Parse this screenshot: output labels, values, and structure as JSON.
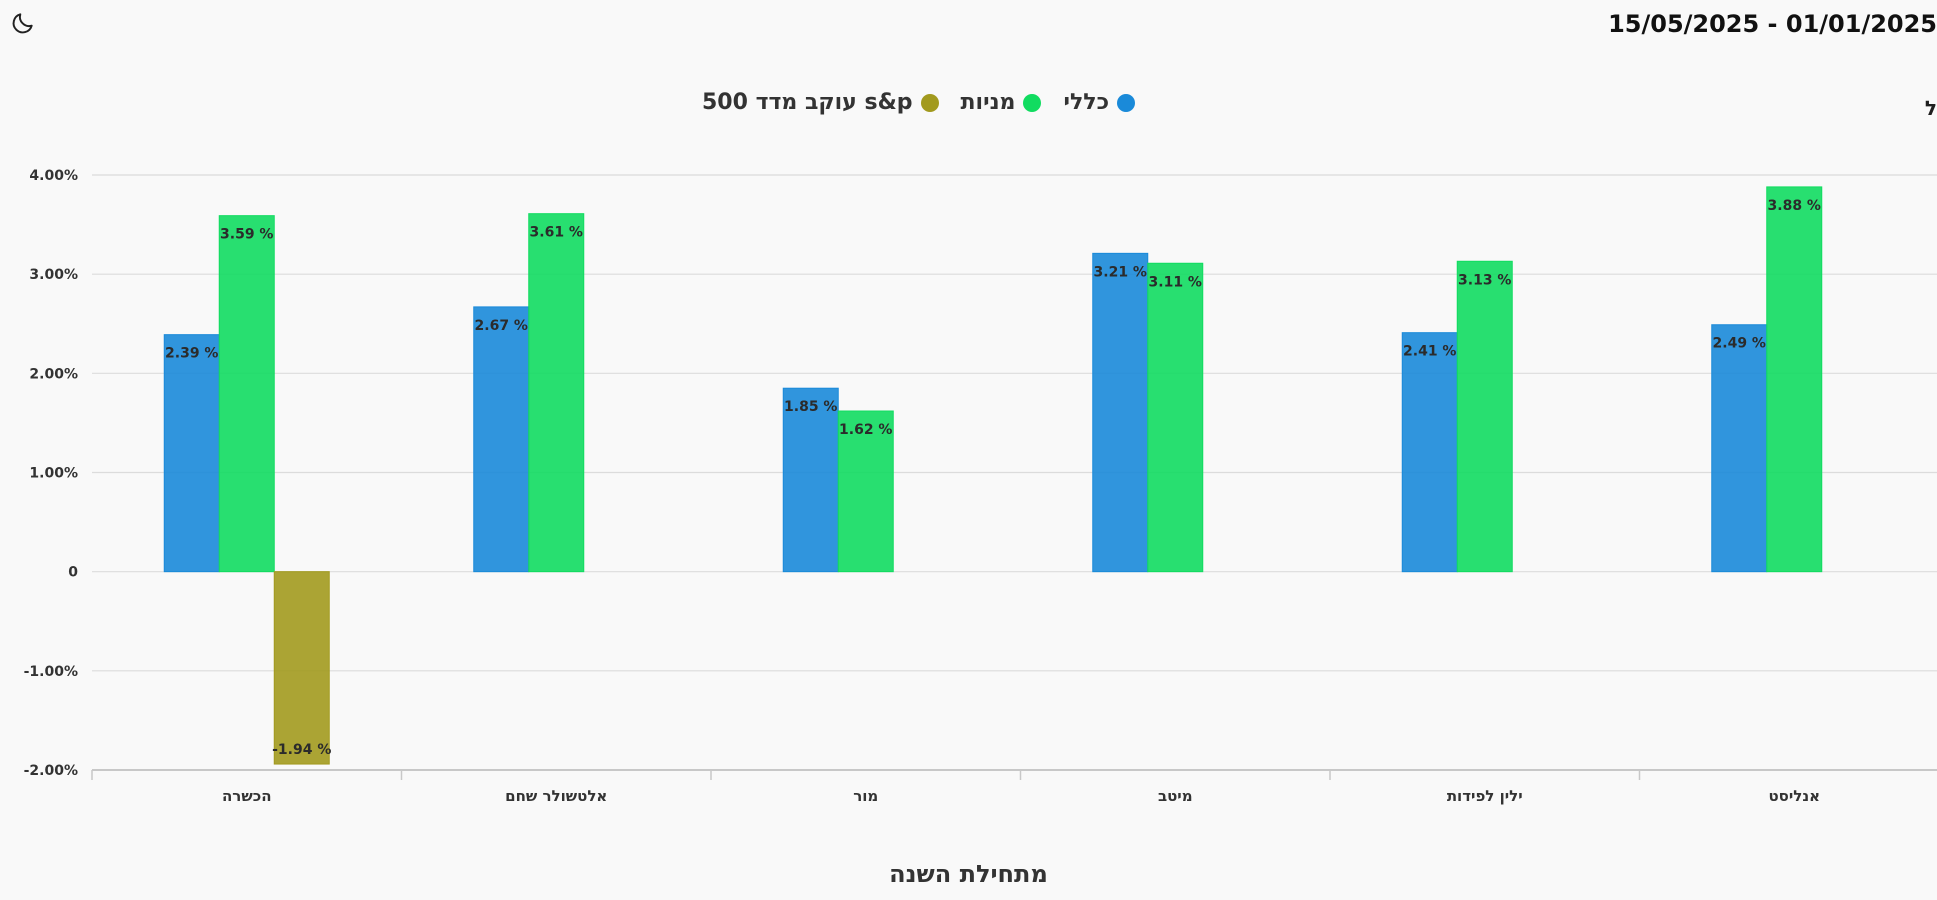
{
  "header": {
    "date_range": "15/05/2025 - 01/01/2025",
    "edge_glyph": "ל",
    "theme_icon": "moon-icon"
  },
  "colors": {
    "series1": "#1a8ad9",
    "series2": "#11dc60",
    "series3": "#a29a1e",
    "grid": "#dcdcdc",
    "axis": "#c8c8c8",
    "label": "#333333"
  },
  "chart_data": {
    "type": "bar",
    "title": "",
    "xlabel": "מתחילת השנה",
    "ylabel": "",
    "ylim": [
      -2,
      4
    ],
    "yticks": [
      4,
      3,
      2,
      1,
      0,
      -1,
      -2
    ],
    "ytick_labels": [
      "4.00%",
      "3.00%",
      "2.00%",
      "1.00%",
      "0",
      "-1.00%",
      "-2.00%"
    ],
    "legend_position": "top-center",
    "grid": true,
    "categories": [
      "הכשרה",
      "אלטשולר שחם",
      "מור",
      "מיטב",
      "ילין לפידות",
      "אנליסט"
    ],
    "series": [
      {
        "name": "כללי",
        "values": [
          2.39,
          2.67,
          1.85,
          3.21,
          2.41,
          2.49
        ]
      },
      {
        "name": "מניות",
        "values": [
          3.59,
          3.61,
          1.62,
          3.11,
          3.13,
          3.88
        ]
      },
      {
        "name": "s&p עוקב מדד 500",
        "values": [
          -1.94,
          null,
          null,
          null,
          null,
          null
        ]
      }
    ]
  }
}
